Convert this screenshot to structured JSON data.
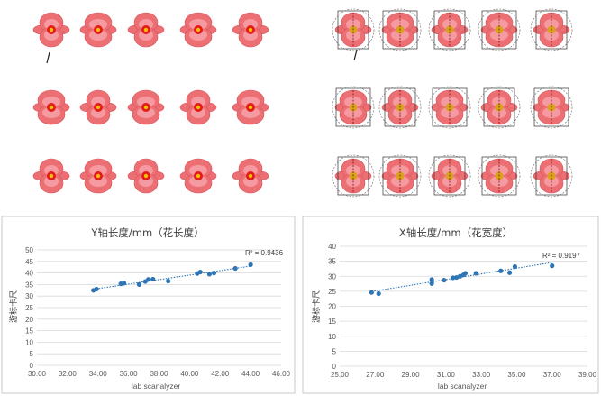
{
  "colors": {
    "series": "#2e75b6",
    "petal": "#ec6f74",
    "center": "#e31b1b"
  },
  "chart_data": [
    {
      "type": "scatter",
      "title": "Y轴长度/mm（花长度）",
      "xlabel": "lab scanalyzer",
      "ylabel": "游标卡尺",
      "xlim": [
        30,
        46
      ],
      "ylim": [
        0,
        50
      ],
      "x_ticks": [
        "30.00",
        "32.00",
        "34.00",
        "36.00",
        "38.00",
        "40.00",
        "42.00",
        "44.00",
        "46.00"
      ],
      "y_ticks": [
        "0",
        "5",
        "10",
        "15",
        "20",
        "25",
        "30",
        "35",
        "40",
        "45",
        "50"
      ],
      "x_ticks_values": [
        30,
        32,
        34,
        36,
        38,
        40,
        42,
        44,
        46
      ],
      "y_ticks_values": [
        0,
        5,
        10,
        15,
        20,
        25,
        30,
        35,
        40,
        45,
        50
      ],
      "trendline": "linear",
      "r2_label": "R² = 0.9436",
      "grid": "horizontal",
      "points": [
        {
          "x": 33.7,
          "y": 32.5
        },
        {
          "x": 33.9,
          "y": 33.0
        },
        {
          "x": 35.5,
          "y": 35.3
        },
        {
          "x": 35.7,
          "y": 35.6
        },
        {
          "x": 36.7,
          "y": 35.0
        },
        {
          "x": 37.1,
          "y": 36.3
        },
        {
          "x": 37.3,
          "y": 37.2
        },
        {
          "x": 37.6,
          "y": 37.3
        },
        {
          "x": 38.6,
          "y": 36.5
        },
        {
          "x": 40.5,
          "y": 39.8
        },
        {
          "x": 40.7,
          "y": 40.4
        },
        {
          "x": 41.3,
          "y": 39.5
        },
        {
          "x": 41.6,
          "y": 40.0
        },
        {
          "x": 43.0,
          "y": 42.0
        },
        {
          "x": 44.0,
          "y": 43.6
        }
      ]
    },
    {
      "type": "scatter",
      "title": "X轴长度/mm（花宽度）",
      "xlabel": "lab scanalyzer",
      "ylabel": "游标卡尺",
      "xlim": [
        25,
        39
      ],
      "ylim": [
        0,
        40
      ],
      "x_ticks": [
        "25.00",
        "27.00",
        "29.00",
        "31.00",
        "33.00",
        "35.00",
        "37.00",
        "39.00"
      ],
      "y_ticks": [
        "0",
        "5",
        "10",
        "15",
        "20",
        "25",
        "30",
        "35",
        "40"
      ],
      "x_ticks_values": [
        25,
        27,
        29,
        31,
        33,
        35,
        37,
        39
      ],
      "y_ticks_values": [
        0,
        5,
        10,
        15,
        20,
        25,
        30,
        35,
        40
      ],
      "trendline": "linear",
      "r2_label": "R² = 0.9197",
      "grid": "horizontal",
      "points": [
        {
          "x": 26.8,
          "y": 24.6
        },
        {
          "x": 27.2,
          "y": 24.2
        },
        {
          "x": 30.2,
          "y": 27.6
        },
        {
          "x": 30.2,
          "y": 28.9
        },
        {
          "x": 30.9,
          "y": 28.7
        },
        {
          "x": 31.4,
          "y": 29.5
        },
        {
          "x": 31.6,
          "y": 29.6
        },
        {
          "x": 31.8,
          "y": 30.0
        },
        {
          "x": 32.0,
          "y": 30.5
        },
        {
          "x": 32.1,
          "y": 31.0
        },
        {
          "x": 32.7,
          "y": 31.0
        },
        {
          "x": 34.1,
          "y": 31.8
        },
        {
          "x": 34.6,
          "y": 31.2
        },
        {
          "x": 34.9,
          "y": 33.2
        },
        {
          "x": 37.0,
          "y": 33.5
        }
      ]
    }
  ]
}
